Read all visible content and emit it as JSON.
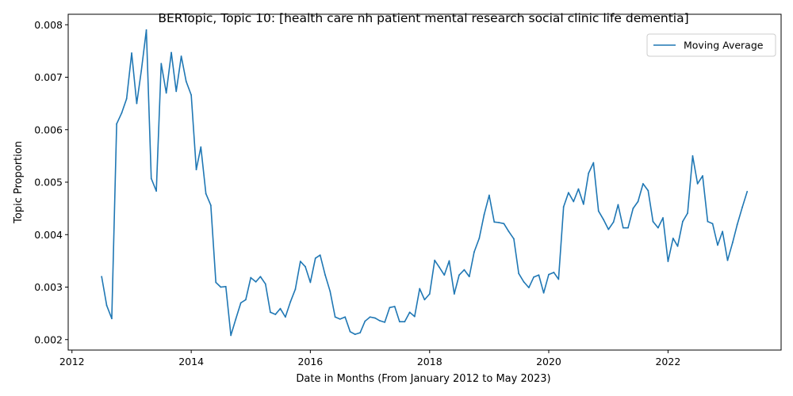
{
  "chart_data": {
    "type": "line",
    "title": "BERTopic, Topic 10: [health care nh patient mental research social clinic life dementia]",
    "xlabel": "Date in Months (From January 2012 to May 2023)",
    "ylabel": "Topic Proportion",
    "xlim": [
      "2011-12-09",
      "2023-11-25"
    ],
    "ylim": [
      0.0018,
      0.0082
    ],
    "x_ticks": [
      "2012",
      "2014",
      "2016",
      "2018",
      "2020",
      "2022"
    ],
    "y_ticks": [
      "0.002",
      "0.003",
      "0.004",
      "0.005",
      "0.006",
      "0.007",
      "0.008"
    ],
    "grid": false,
    "legend": {
      "position": "top-right",
      "entries": [
        "Moving Average"
      ]
    },
    "colors": {
      "series": "#1f77b4"
    },
    "series": [
      {
        "name": "Moving Average",
        "x": [
          "2012-07",
          "2012-08",
          "2012-09",
          "2012-10",
          "2012-11",
          "2012-12",
          "2013-01",
          "2013-02",
          "2013-03",
          "2013-04",
          "2013-05",
          "2013-06",
          "2013-07",
          "2013-08",
          "2013-09",
          "2013-10",
          "2013-11",
          "2013-12",
          "2014-01",
          "2014-02",
          "2014-03",
          "2014-04",
          "2014-05",
          "2014-06",
          "2014-07",
          "2014-08",
          "2014-09",
          "2014-10",
          "2014-11",
          "2014-12",
          "2015-01",
          "2015-02",
          "2015-03",
          "2015-04",
          "2015-05",
          "2015-06",
          "2015-07",
          "2015-08",
          "2015-09",
          "2015-10",
          "2015-11",
          "2015-12",
          "2016-01",
          "2016-02",
          "2016-03",
          "2016-04",
          "2016-05",
          "2016-06",
          "2016-07",
          "2016-08",
          "2016-09",
          "2016-10",
          "2016-11",
          "2016-12",
          "2017-01",
          "2017-02",
          "2017-03",
          "2017-04",
          "2017-05",
          "2017-06",
          "2017-07",
          "2017-08",
          "2017-09",
          "2017-10",
          "2017-11",
          "2017-12",
          "2018-01",
          "2018-02",
          "2018-03",
          "2018-04",
          "2018-05",
          "2018-06",
          "2018-07",
          "2018-08",
          "2018-09",
          "2018-10",
          "2018-11",
          "2018-12",
          "2019-01",
          "2019-02",
          "2019-03",
          "2019-04",
          "2019-05",
          "2019-06",
          "2019-07",
          "2019-08",
          "2019-09",
          "2019-10",
          "2019-11",
          "2019-12",
          "2020-01",
          "2020-02",
          "2020-03",
          "2020-04",
          "2020-05",
          "2020-06",
          "2020-07",
          "2020-08",
          "2020-09",
          "2020-10",
          "2020-11",
          "2020-12",
          "2021-01",
          "2021-02",
          "2021-03",
          "2021-04",
          "2021-05",
          "2021-06",
          "2021-07",
          "2021-08",
          "2021-09",
          "2021-10",
          "2021-11",
          "2021-12",
          "2022-01",
          "2022-02",
          "2022-03",
          "2022-04",
          "2022-05",
          "2022-06",
          "2022-07",
          "2022-08",
          "2022-09",
          "2022-10",
          "2022-11",
          "2022-12",
          "2023-01",
          "2023-02",
          "2023-03",
          "2023-04",
          "2023-05"
        ],
        "values": [
          0.0032,
          0.00265,
          0.0024,
          0.00611,
          0.00632,
          0.00659,
          0.00746,
          0.0065,
          0.00712,
          0.0079,
          0.00507,
          0.00483,
          0.00726,
          0.0067,
          0.00747,
          0.00673,
          0.0074,
          0.00692,
          0.00666,
          0.00524,
          0.00567,
          0.00478,
          0.00456,
          0.00309,
          0.003,
          0.00301,
          0.00208,
          0.00239,
          0.0027,
          0.00276,
          0.00318,
          0.0031,
          0.0032,
          0.00306,
          0.00252,
          0.00248,
          0.00259,
          0.00243,
          0.00272,
          0.00296,
          0.00349,
          0.00339,
          0.00309,
          0.00355,
          0.00361,
          0.00323,
          0.00292,
          0.00243,
          0.00239,
          0.00243,
          0.00215,
          0.0021,
          0.00213,
          0.00235,
          0.00243,
          0.00241,
          0.00236,
          0.00233,
          0.00261,
          0.00263,
          0.00234,
          0.00234,
          0.00252,
          0.00244,
          0.00297,
          0.00276,
          0.00287,
          0.00351,
          0.00338,
          0.00323,
          0.0035,
          0.00287,
          0.00323,
          0.00333,
          0.0032,
          0.00367,
          0.00393,
          0.00438,
          0.00475,
          0.00424,
          0.00423,
          0.00421,
          0.00406,
          0.00392,
          0.00326,
          0.0031,
          0.00299,
          0.00319,
          0.00323,
          0.00289,
          0.00324,
          0.00328,
          0.00315,
          0.00453,
          0.0048,
          0.00463,
          0.00487,
          0.00458,
          0.00517,
          0.00537,
          0.00445,
          0.00429,
          0.0041,
          0.00424,
          0.00457,
          0.00413,
          0.00413,
          0.0045,
          0.00463,
          0.00497,
          0.00484,
          0.00425,
          0.00413,
          0.00432,
          0.00349,
          0.00393,
          0.00378,
          0.00425,
          0.00441,
          0.0055,
          0.00497,
          0.00512,
          0.00425,
          0.00421,
          0.0038,
          0.00406,
          0.00351,
          0.00385,
          0.00419,
          0.00452,
          0.00482
        ]
      }
    ]
  }
}
